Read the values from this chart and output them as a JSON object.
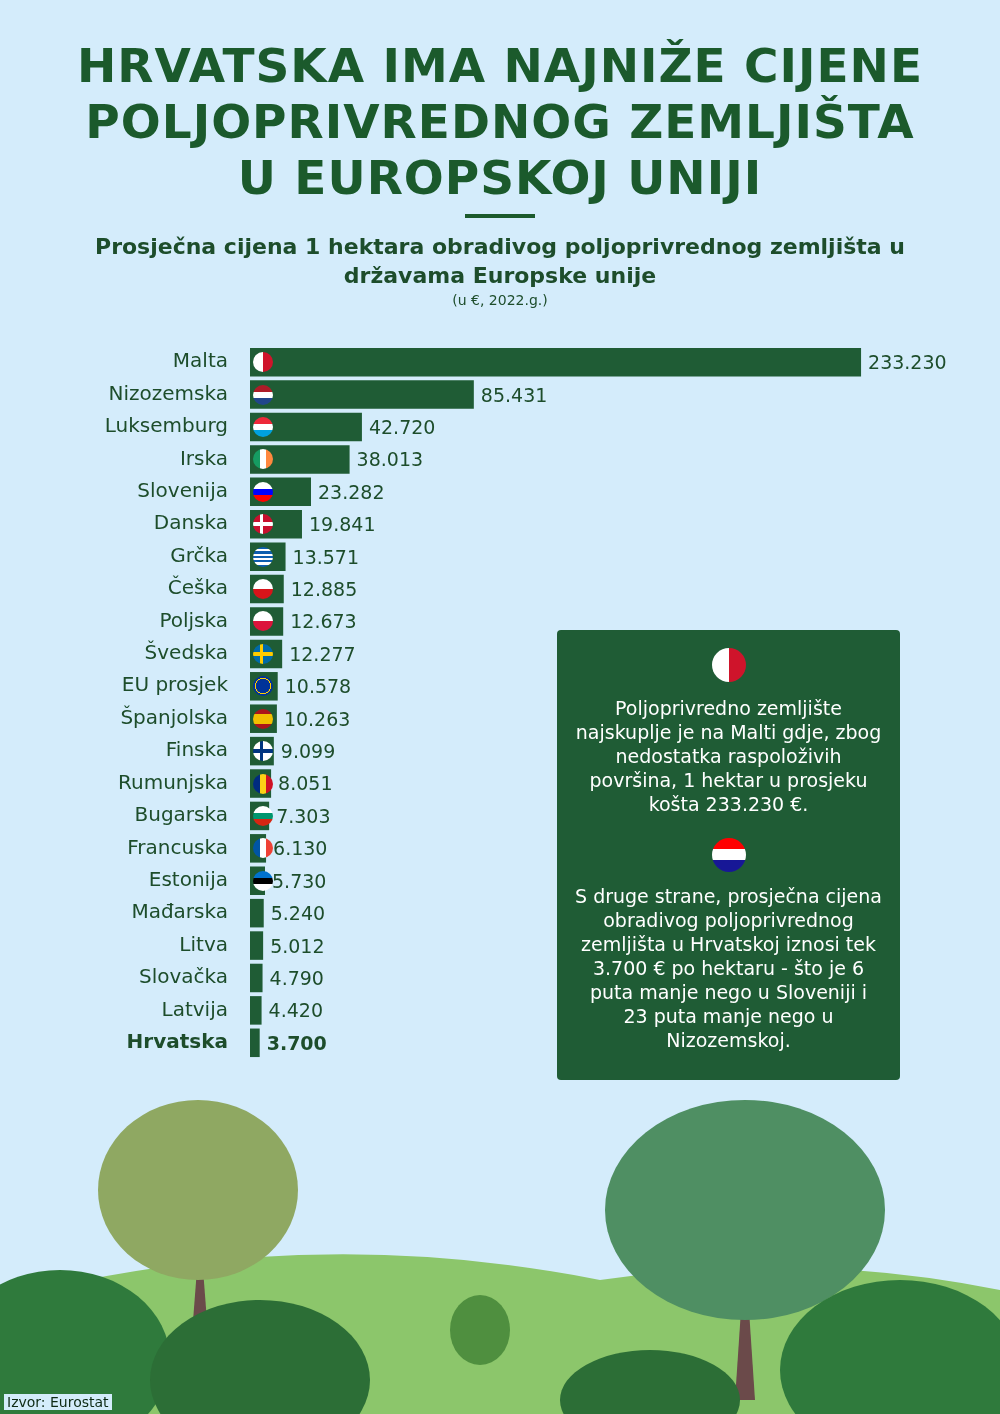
{
  "chart_data": {
    "type": "bar",
    "orientation": "horizontal",
    "title": "HRVATSKA IMA NAJNIŽE CIJENE POLJOPRIVREDNOG ZEMLJIŠTA U EUROPSKOJ UNIJI",
    "subtitle": "Prosječna cijena 1 hektara obradivog poljoprivrednog zemljišta u državama Europske unije",
    "xlabel": "(u €, 2022.g.)",
    "categories": [
      "Malta",
      "Nizozemska",
      "Luksemburg",
      "Irska",
      "Slovenija",
      "Danska",
      "Grčka",
      "Češka",
      "Poljska",
      "Švedska",
      "EU prosjek",
      "Španjolska",
      "Finska",
      "Rumunjska",
      "Bugarska",
      "Francuska",
      "Estonija",
      "Mađarska",
      "Litva",
      "Slovačka",
      "Latvija",
      "Hrvatska"
    ],
    "values": [
      233230,
      85431,
      42720,
      38013,
      23282,
      19841,
      13571,
      12885,
      12673,
      12277,
      10578,
      10263,
      9099,
      8051,
      7303,
      6130,
      5730,
      5240,
      5012,
      4790,
      4420,
      3700
    ],
    "value_labels": [
      "233.230",
      "85.431",
      "42.720",
      "38.013",
      "23.282",
      "19.841",
      "13.571",
      "12.885",
      "12.673",
      "12.277",
      "10.578",
      "10.263",
      "9.099",
      "8.051",
      "7.303",
      "6.130",
      "5.730",
      "5.240",
      "5.012",
      "4.790",
      "4.420",
      "3.700"
    ],
    "color": "#1f5c35",
    "legend": false,
    "tick_labels": "y",
    "annotations": [
      "Poljoprivredno zemljište najskuplje je na Malti gdje, zbog nedostatka raspoloživih površina, 1 hektar u prosjeku košta 233.230 €.",
      "S druge strane, prosječna cijena obradivog poljoprivrednog zemljišta u Hrvatskoj iznosi tek 3.700 € po hektaru - što je 6 puta manje nego u Sloveniji i 23 puta manje nego u Nizozemskoj.",
      "Izvor: Eurostat"
    ]
  }
}
